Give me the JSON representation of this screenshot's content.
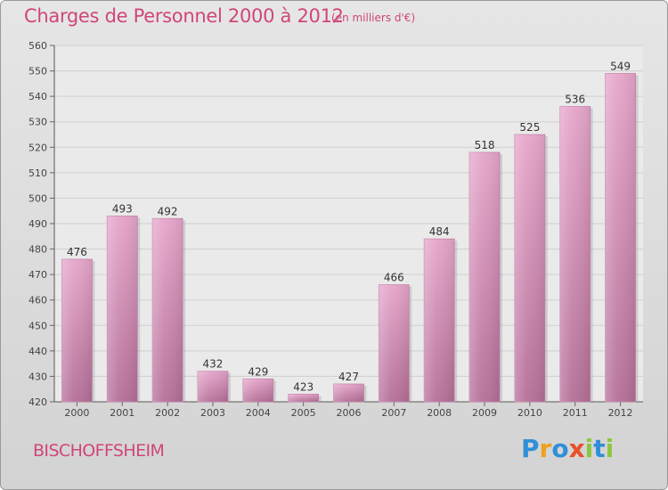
{
  "title": "Charges de Personnel 2000 à 2012",
  "subtitle": "(en milliers d'€)",
  "commune": "BISCHOFFSHEIM",
  "logo": {
    "letters": [
      {
        "ch": "P",
        "color": "#2f8fd8"
      },
      {
        "ch": "r",
        "color": "#f0a020"
      },
      {
        "ch": "o",
        "color": "#2f8fd8"
      },
      {
        "ch": "x",
        "color": "#e8502a"
      },
      {
        "ch": "i",
        "color": "#8cc63f"
      },
      {
        "ch": "t",
        "color": "#2f8fd8"
      },
      {
        "ch": "i",
        "color": "#8cc63f"
      }
    ]
  },
  "chart_data": {
    "type": "bar",
    "categories": [
      "2000",
      "2001",
      "2002",
      "2003",
      "2004",
      "2005",
      "2006",
      "2007",
      "2008",
      "2009",
      "2010",
      "2011",
      "2012"
    ],
    "values": [
      476,
      493,
      492,
      432,
      429,
      423,
      427,
      466,
      484,
      518,
      525,
      536,
      549
    ],
    "ylim": [
      420,
      560
    ],
    "yticks": [
      420,
      430,
      440,
      450,
      460,
      470,
      480,
      490,
      500,
      510,
      520,
      530,
      540,
      550,
      560
    ],
    "grid": "horizontal",
    "bar_color": "#d987b5"
  }
}
